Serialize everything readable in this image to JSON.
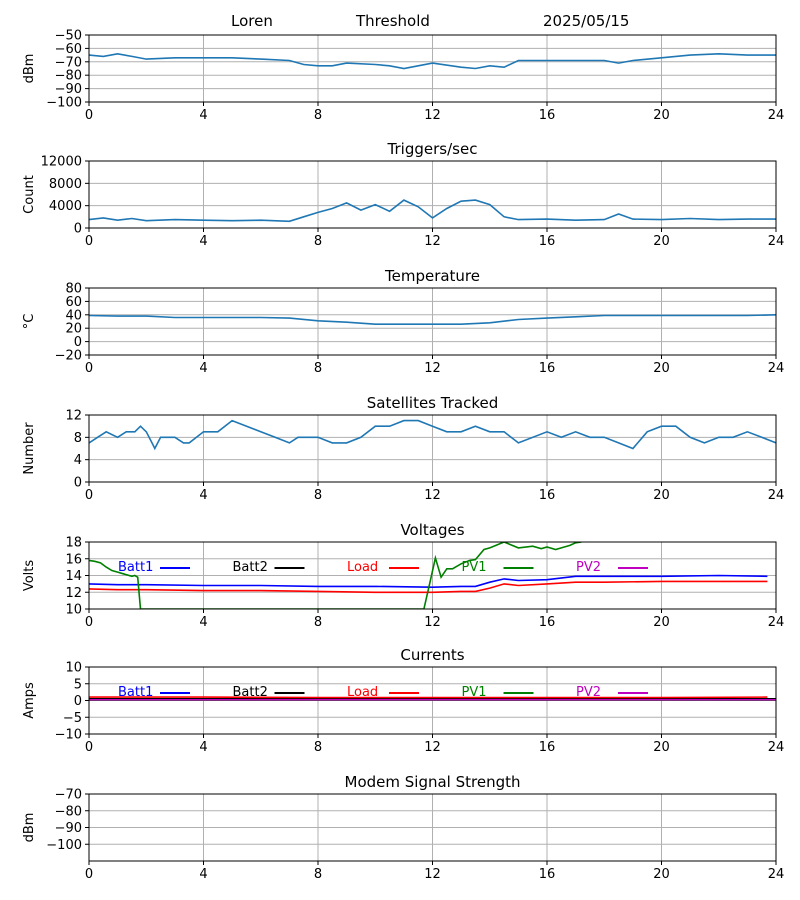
{
  "header": {
    "site": "Loren",
    "mode": "Threshold",
    "date": "2025/05/15"
  },
  "colors": {
    "axis": "#000000",
    "grid": "#b0b0b0",
    "default_series": "#1f77b4"
  },
  "chart_data": [
    {
      "type": "line",
      "title": "",
      "xlabel": "",
      "ylabel": "dBm",
      "xlim": [
        0,
        24
      ],
      "ylim": [
        -100,
        -50
      ],
      "xticks": [
        0,
        4,
        8,
        12,
        16,
        20,
        24
      ],
      "yticks": [
        -100,
        -90,
        -80,
        -70,
        -60,
        -50
      ],
      "grid": true,
      "series": [
        {
          "color": "#1f77b4",
          "x": [
            0,
            0.5,
            1,
            1.5,
            2,
            3,
            4,
            5,
            6,
            7,
            7.5,
            8,
            8.5,
            9,
            10,
            10.5,
            11,
            11.5,
            12,
            13,
            13.5,
            14,
            14.5,
            15,
            16,
            17,
            18,
            18.5,
            19,
            20,
            21,
            22,
            23,
            24
          ],
          "y": [
            -65,
            -66,
            -64,
            -66,
            -68,
            -67,
            -67,
            -67,
            -68,
            -69,
            -72,
            -73,
            -73,
            -71,
            -72,
            -73,
            -75,
            -73,
            -71,
            -74,
            -75,
            -73,
            -74,
            -69,
            -69,
            -69,
            -69,
            -71,
            -69,
            -67,
            -65,
            -64,
            -65,
            -65
          ]
        }
      ]
    },
    {
      "type": "line",
      "title": "Triggers/sec",
      "xlabel": "",
      "ylabel": "Count",
      "xlim": [
        0,
        24
      ],
      "ylim": [
        0,
        12000
      ],
      "xticks": [
        0,
        4,
        8,
        12,
        16,
        20,
        24
      ],
      "yticks": [
        0,
        4000,
        8000,
        12000
      ],
      "grid": true,
      "series": [
        {
          "color": "#1f77b4",
          "x": [
            0,
            0.5,
            1,
            1.5,
            2,
            3,
            4,
            5,
            6,
            7,
            7.5,
            8,
            8.5,
            9,
            9.5,
            10,
            10.5,
            11,
            11.5,
            12,
            12.5,
            13,
            13.5,
            14,
            14.5,
            15,
            16,
            17,
            18,
            18.5,
            19,
            20,
            21,
            22,
            23,
            24
          ],
          "y": [
            1500,
            1800,
            1400,
            1700,
            1300,
            1500,
            1400,
            1300,
            1400,
            1200,
            2000,
            2800,
            3500,
            4500,
            3200,
            4200,
            3000,
            5000,
            3800,
            1800,
            3500,
            4800,
            5000,
            4200,
            2000,
            1500,
            1600,
            1400,
            1500,
            2500,
            1600,
            1500,
            1700,
            1500,
            1600,
            1600
          ]
        }
      ]
    },
    {
      "type": "line",
      "title": "Temperature",
      "xlabel": "",
      "ylabel": "°C",
      "xlim": [
        0,
        24
      ],
      "ylim": [
        -20,
        80
      ],
      "xticks": [
        0,
        4,
        8,
        12,
        16,
        20,
        24
      ],
      "yticks": [
        -20,
        0,
        20,
        40,
        60,
        80
      ],
      "grid": true,
      "series": [
        {
          "color": "#1f77b4",
          "x": [
            0,
            1,
            2,
            3,
            4,
            5,
            6,
            7,
            8,
            9,
            10,
            11,
            12,
            13,
            14,
            15,
            16,
            17,
            18,
            19,
            20,
            21,
            22,
            23,
            24
          ],
          "y": [
            39,
            38,
            38,
            36,
            36,
            36,
            36,
            35,
            31,
            29,
            26,
            26,
            26,
            26,
            28,
            33,
            35,
            37,
            39,
            39,
            39,
            39,
            39,
            39,
            40
          ]
        }
      ]
    },
    {
      "type": "line",
      "title": "Satellites Tracked",
      "xlabel": "",
      "ylabel": "Number",
      "xlim": [
        0,
        24
      ],
      "ylim": [
        0,
        12
      ],
      "xticks": [
        0,
        4,
        8,
        12,
        16,
        20,
        24
      ],
      "yticks": [
        0,
        4,
        8,
        12
      ],
      "grid": true,
      "series": [
        {
          "color": "#1f77b4",
          "x": [
            0,
            0.3,
            0.6,
            1,
            1.3,
            1.6,
            1.8,
            2,
            2.2,
            2.3,
            2.5,
            3,
            3.3,
            3.5,
            4,
            4.5,
            5,
            6,
            6.5,
            7,
            7.3,
            8,
            8.5,
            9,
            9.5,
            10,
            10.5,
            11,
            11.5,
            12,
            12.5,
            13,
            13.5,
            14,
            14.5,
            15,
            16,
            16.5,
            17,
            17.5,
            18,
            18.5,
            19,
            19.5,
            20,
            20.5,
            21,
            21.5,
            22,
            22.5,
            23,
            23.5,
            24
          ],
          "y": [
            7,
            8,
            9,
            8,
            9,
            9,
            10,
            9,
            7,
            6,
            8,
            8,
            7,
            7,
            9,
            9,
            11,
            9,
            8,
            7,
            8,
            8,
            7,
            7,
            8,
            10,
            10,
            11,
            11,
            10,
            9,
            9,
            10,
            9,
            9,
            7,
            9,
            8,
            9,
            8,
            8,
            7,
            6,
            9,
            10,
            10,
            8,
            7,
            8,
            8,
            9,
            8,
            7
          ]
        }
      ]
    },
    {
      "type": "line",
      "title": "Voltages",
      "xlabel": "",
      "ylabel": "Volts",
      "xlim": [
        0,
        24
      ],
      "ylim": [
        10,
        18
      ],
      "xticks": [
        0,
        4,
        8,
        12,
        16,
        20,
        24
      ],
      "yticks": [
        10,
        12,
        14,
        16,
        18
      ],
      "grid": true,
      "legend": "top",
      "series": [
        {
          "name": "Batt1",
          "color": "#0000ff",
          "x": [
            0,
            1,
            2,
            4,
            6,
            8,
            10,
            12,
            13,
            13.5,
            14,
            14.5,
            15,
            16,
            17,
            18,
            20,
            22,
            23.7
          ],
          "y": [
            13.0,
            12.9,
            12.9,
            12.8,
            12.8,
            12.7,
            12.7,
            12.6,
            12.7,
            12.7,
            13.2,
            13.6,
            13.4,
            13.5,
            13.9,
            13.9,
            13.9,
            14.0,
            13.9
          ]
        },
        {
          "name": "Batt2",
          "color": "#000000",
          "x": [],
          "y": []
        },
        {
          "name": "Load",
          "color": "#ff0000",
          "x": [
            0,
            1,
            2,
            4,
            6,
            8,
            10,
            12,
            13,
            13.5,
            14,
            14.5,
            15,
            16,
            17,
            18,
            20,
            22,
            23.7
          ],
          "y": [
            12.4,
            12.3,
            12.3,
            12.2,
            12.2,
            12.1,
            12.0,
            12.0,
            12.1,
            12.1,
            12.5,
            13.0,
            12.8,
            13.0,
            13.2,
            13.2,
            13.3,
            13.3,
            13.3
          ]
        },
        {
          "name": "PV1",
          "color": "#008000",
          "x": [
            0,
            0.2,
            0.4,
            0.6,
            0.8,
            1,
            1.2,
            1.4,
            1.5,
            1.6,
            1.7,
            1.8,
            11.7,
            11.9,
            12.1,
            12.3,
            12.5,
            12.7,
            13.0,
            13.3,
            13.5,
            13.8,
            14.0,
            14.5,
            15.0,
            15.5,
            15.8,
            16.0,
            16.3,
            16.5,
            16.8,
            17.0,
            17.2
          ],
          "y": [
            15.8,
            15.7,
            15.5,
            15.0,
            14.6,
            14.4,
            14.2,
            14.0,
            13.9,
            14.0,
            13.8,
            10,
            10,
            13.0,
            16.1,
            13.8,
            14.8,
            14.8,
            15.4,
            15.8,
            15.9,
            17.1,
            17.3,
            18.0,
            17.3,
            17.5,
            17.2,
            17.4,
            17.1,
            17.3,
            17.6,
            17.9,
            18
          ]
        },
        {
          "name": "PV2",
          "color": "#bf00bf",
          "x": [],
          "y": []
        }
      ]
    },
    {
      "type": "line",
      "title": "Currents",
      "xlabel": "",
      "ylabel": "Amps",
      "xlim": [
        0,
        24
      ],
      "ylim": [
        -10,
        10
      ],
      "xticks": [
        0,
        4,
        8,
        12,
        16,
        20,
        24
      ],
      "yticks": [
        -10,
        -5,
        0,
        5,
        10
      ],
      "grid": true,
      "legend": "top",
      "series": [
        {
          "name": "Batt1",
          "color": "#0000ff",
          "x": [
            0,
            24
          ],
          "y": [
            0.3,
            0.3
          ]
        },
        {
          "name": "Batt2",
          "color": "#000000",
          "x": [
            0,
            24
          ],
          "y": [
            0.5,
            0.5
          ]
        },
        {
          "name": "Load",
          "color": "#ff0000",
          "x": [
            0,
            4,
            8,
            12,
            16,
            20,
            23.7
          ],
          "y": [
            1.0,
            1.0,
            0.9,
            0.9,
            0.9,
            0.9,
            1.0
          ]
        },
        {
          "name": "PV1",
          "color": "#008000",
          "x": [
            0,
            24
          ],
          "y": [
            0.1,
            0.1
          ]
        },
        {
          "name": "PV2",
          "color": "#bf00bf",
          "x": [
            0,
            24
          ],
          "y": [
            0.2,
            0.2
          ]
        }
      ]
    },
    {
      "type": "line",
      "title": "Modem Signal Strength",
      "xlabel": "",
      "ylabel": "dBm",
      "xlim": [
        0,
        24
      ],
      "ylim": [
        -110,
        -70
      ],
      "xticks": [
        0,
        4,
        8,
        12,
        16,
        20,
        24
      ],
      "yticks": [
        -100,
        -90,
        -80,
        -70
      ],
      "grid": true,
      "series": []
    }
  ]
}
